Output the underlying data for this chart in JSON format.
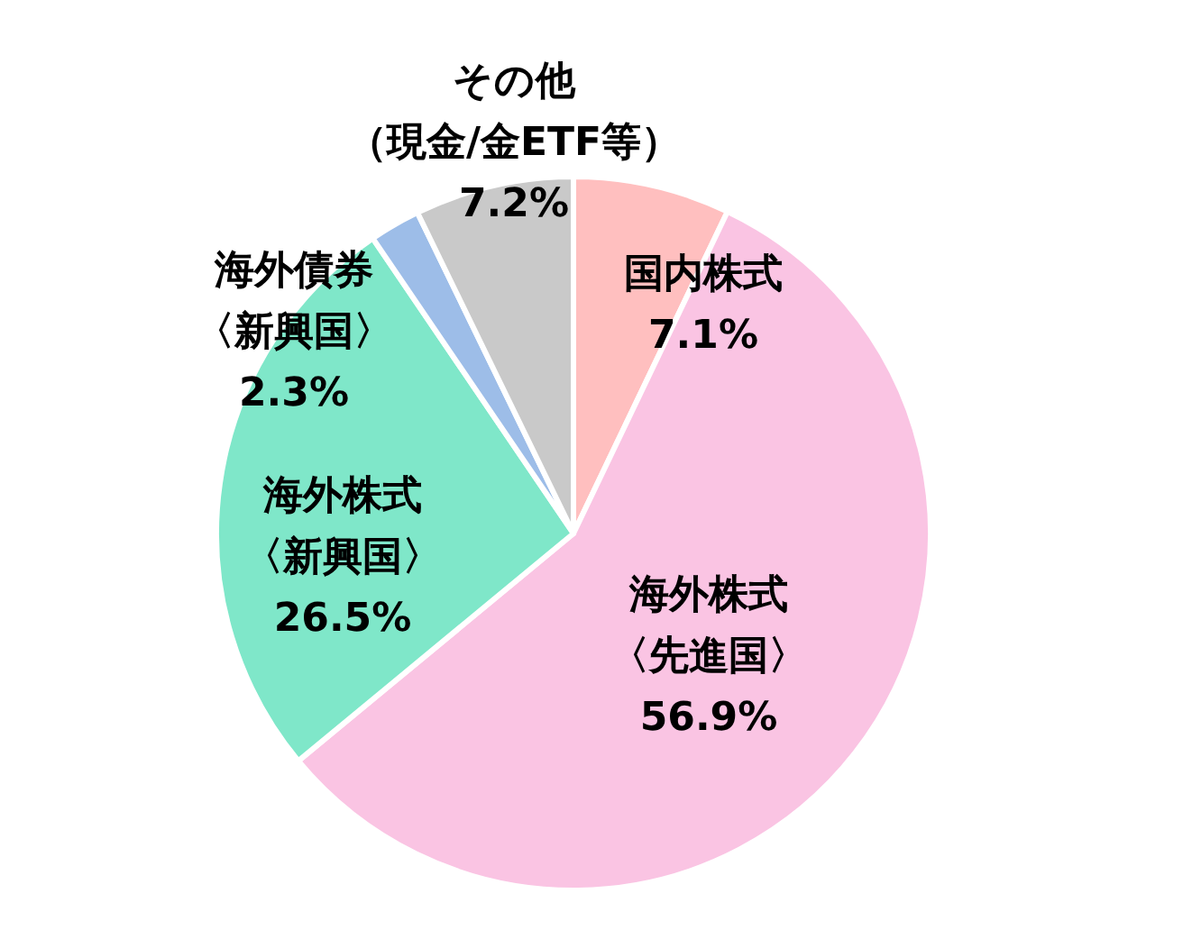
{
  "chart_data": {
    "type": "pie",
    "categories": [
      "国内株式",
      "海外株式〈先進国〉",
      "海外株式〈新興国〉",
      "海外債券〈新興国〉",
      "その他（現金/金ETF等）"
    ],
    "values": [
      7.1,
      56.9,
      26.5,
      2.3,
      7.2
    ],
    "colors": [
      "#ffbfbf",
      "#fac4e3",
      "#7fe7c9",
      "#9dbde8",
      "#c9c9c9"
    ],
    "value_labels": [
      "7.1%",
      "56.9%",
      "26.5%",
      "2.3%",
      "7.2%"
    ]
  }
}
